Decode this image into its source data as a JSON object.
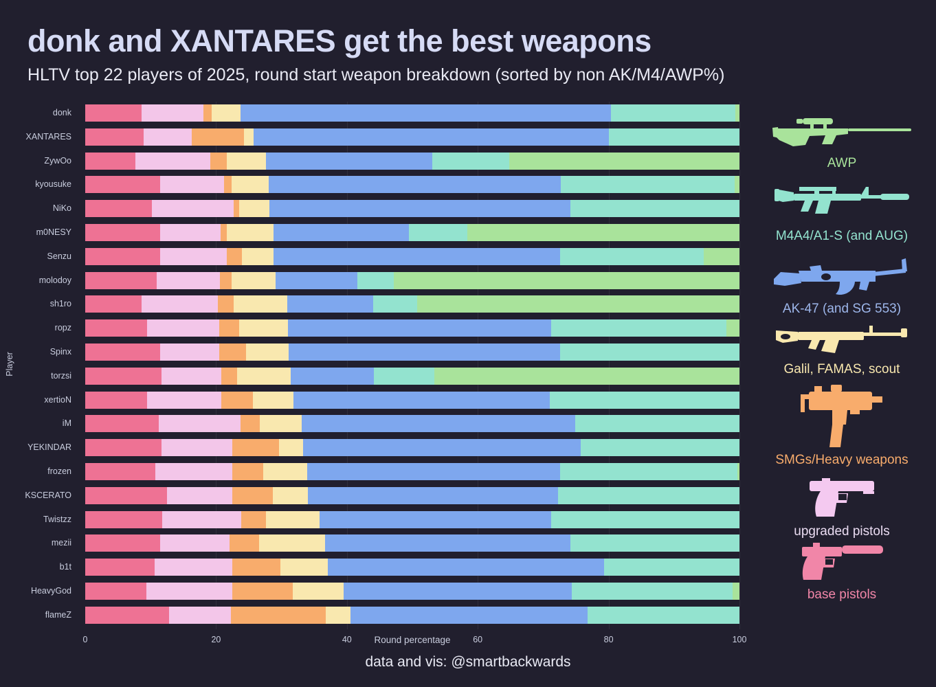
{
  "title": "donk and XANTARES get the best weapons",
  "subtitle": "HLTV top 22 players of 2025, round start weapon breakdown (sorted by non AK/M4/AWP%)",
  "footer": "data and vis: @smartbackwards",
  "colors": {
    "background": "#211f2e",
    "title_text": "#d6dbf5",
    "subtitle_text": "#e9eaf4",
    "axis_text": "#c9cdde",
    "base_pistols": "#ee7294",
    "upgraded_pistols": "#f3c6e9",
    "smgs": "#f8ac6c",
    "galil": "#f9e8af",
    "ak47": "#7ea7ee",
    "m4": "#93e3cf",
    "awp": "#a9e39b",
    "legend_awp_text": "#a9e39b",
    "legend_m4_text": "#93e3cf",
    "legend_ak_text": "#9db6ea",
    "legend_galil_text": "#f9e8af",
    "legend_smg_text": "#f8ac6c",
    "legend_upgraded_text": "#eadcf2",
    "legend_base_text": "#f186a8",
    "upgraded_pistol_icon": "#f4c9f0",
    "base_pistol_icon": "#f186a8"
  },
  "legend": {
    "items": [
      {
        "label": "AWP",
        "color_key": "awp"
      },
      {
        "label": "M4A4/A1-S (and AUG)",
        "color_key": "m4"
      },
      {
        "label": "AK-47 (and SG 553)",
        "color_key": "ak47"
      },
      {
        "label": "Galil, FAMAS, scout",
        "color_key": "galil"
      },
      {
        "label": "SMGs/Heavy weapons",
        "color_key": "smgs"
      },
      {
        "label": "upgraded pistols",
        "color_key": "upgraded_pistols"
      },
      {
        "label": "base pistols",
        "color_key": "base_pistols"
      }
    ]
  },
  "chart_data": {
    "type": "bar",
    "subtype": "horizontal_stacked",
    "title": "donk and XANTARES get the best weapons",
    "xlabel": "Round percentage",
    "ylabel": "Player",
    "xlim": [
      0,
      100
    ],
    "x_ticks": [
      0,
      20,
      40,
      60,
      80,
      100
    ],
    "grid": "subtle vertical gridlines at x ticks",
    "legend_position": "right",
    "categories": [
      "donk",
      "XANTARES",
      "ZywOo",
      "kyousuke",
      "NiKo",
      "m0NESY",
      "Senzu",
      "molodoy",
      "sh1ro",
      "ropz",
      "Spinx",
      "torzsi",
      "xertioN",
      "iM",
      "YEKINDAR",
      "frozen",
      "KSCERATO",
      "Twistzz",
      "mezii",
      "b1t",
      "HeavyGod",
      "flameZ"
    ],
    "series": [
      {
        "name": "base pistols",
        "color_key": "base_pistols",
        "values": [
          8.6,
          8.9,
          7.7,
          11.5,
          10.2,
          11.4,
          11.5,
          10.9,
          8.6,
          9.5,
          11.4,
          11.7,
          9.5,
          11.2,
          11.7,
          10.7,
          12.5,
          11.8,
          11.5,
          10.6,
          9.3,
          12.8
        ]
      },
      {
        "name": "upgraded pistols",
        "color_key": "upgraded_pistols",
        "values": [
          9.5,
          7.4,
          11.4,
          9.7,
          12.5,
          9.3,
          10.1,
          9.7,
          11.7,
          11.0,
          9.1,
          9.1,
          11.3,
          12.5,
          10.8,
          11.8,
          10.0,
          12.0,
          10.6,
          11.9,
          13.2,
          9.5
        ]
      },
      {
        "name": "SMGs/Heavy weapons",
        "color_key": "smgs",
        "values": [
          1.2,
          8.0,
          2.5,
          1.2,
          0.8,
          0.9,
          2.4,
          1.8,
          2.4,
          3.0,
          4.1,
          2.4,
          4.8,
          3.0,
          7.1,
          4.7,
          6.2,
          3.8,
          4.5,
          7.3,
          9.2,
          14.5
        ]
      },
      {
        "name": "Galil, FAMAS, scout",
        "color_key": "galil",
        "values": [
          4.4,
          1.4,
          6.0,
          5.6,
          4.7,
          7.2,
          4.8,
          6.7,
          8.2,
          7.5,
          6.5,
          8.2,
          6.2,
          6.4,
          3.7,
          6.7,
          5.3,
          8.2,
          10.1,
          7.3,
          7.8,
          3.8
        ]
      },
      {
        "name": "AK-47 (and SG 553)",
        "color_key": "ak47",
        "values": [
          56.7,
          54.3,
          25.5,
          44.7,
          46.0,
          20.7,
          43.8,
          12.5,
          13.1,
          40.2,
          41.5,
          12.7,
          39.2,
          41.8,
          42.4,
          38.7,
          38.3,
          35.4,
          37.5,
          42.2,
          34.9,
          36.2
        ]
      },
      {
        "name": "M4A4/A1-S (and AUG)",
        "color_key": "m4",
        "values": [
          19.0,
          20.0,
          11.7,
          26.6,
          25.8,
          8.9,
          21.9,
          5.6,
          6.7,
          26.8,
          27.4,
          9.3,
          29.0,
          25.1,
          24.3,
          27.1,
          27.7,
          28.8,
          25.8,
          20.7,
          24.6,
          23.2
        ]
      },
      {
        "name": "AWP",
        "color_key": "awp",
        "values": [
          0.6,
          0,
          35.2,
          0.7,
          0,
          41.6,
          5.5,
          52.8,
          49.3,
          2.0,
          0,
          46.6,
          0,
          0,
          0,
          0.3,
          0,
          0,
          0,
          0,
          1.0,
          0
        ]
      }
    ]
  }
}
